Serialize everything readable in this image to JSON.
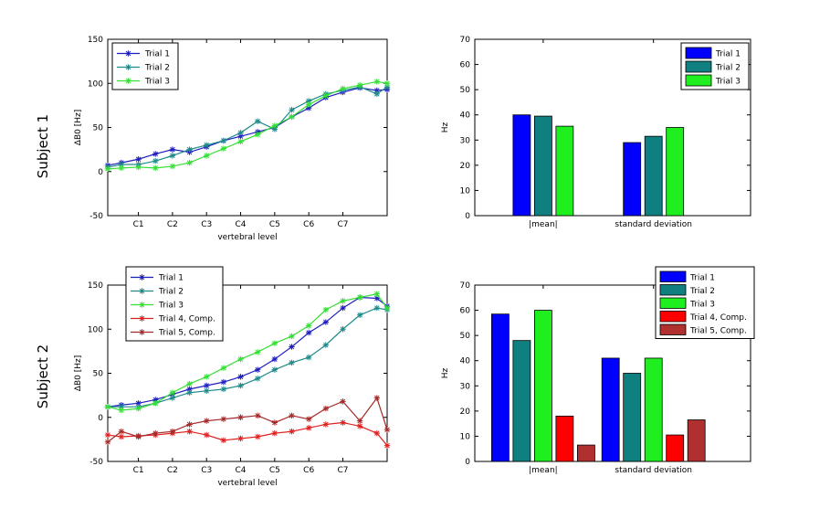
{
  "figure": {
    "subjects": [
      "Subject 1",
      "Subject 2"
    ]
  },
  "chart_data": [
    {
      "id": "s1_line",
      "type": "line",
      "subject": "Subject 1",
      "xlabel": "vertebral level",
      "ylabel": "ΔB0 [Hz]",
      "ylim": [
        -50,
        150
      ],
      "yticks": [
        -50,
        0,
        50,
        100,
        150
      ],
      "xtick_labels": [
        "C1",
        "C2",
        "C3",
        "C4",
        "C5",
        "C6",
        "C7"
      ],
      "xtick_positions": [
        1,
        2,
        3,
        4,
        5,
        6,
        7
      ],
      "xlim": [
        0.1,
        8.3
      ],
      "legend_position": "top-left",
      "series": [
        {
          "name": "Trial 1",
          "color": "#1f1fbf",
          "x": [
            0.1,
            0.5,
            1.0,
            1.5,
            2.0,
            2.5,
            3.0,
            3.5,
            4.0,
            4.5,
            5.0,
            5.5,
            6.0,
            6.5,
            7.0,
            7.5,
            8.0,
            8.3
          ],
          "y": [
            7,
            10,
            14,
            20,
            25,
            22,
            28,
            35,
            40,
            45,
            50,
            62,
            72,
            84,
            90,
            95,
            92,
            93
          ]
        },
        {
          "name": "Trial 2",
          "color": "#1f8a8a",
          "x": [
            0.1,
            0.5,
            1.0,
            1.5,
            2.0,
            2.5,
            3.0,
            3.5,
            4.0,
            4.5,
            5.0,
            5.5,
            6.0,
            6.5,
            7.0,
            7.5,
            8.0,
            8.3
          ],
          "y": [
            5,
            8,
            8,
            12,
            18,
            25,
            30,
            35,
            44,
            57,
            48,
            70,
            80,
            88,
            92,
            96,
            88,
            96
          ]
        },
        {
          "name": "Trial 3",
          "color": "#33e033",
          "x": [
            0.1,
            0.5,
            1.0,
            1.5,
            2.0,
            2.5,
            3.0,
            3.5,
            4.0,
            4.5,
            5.0,
            5.5,
            6.0,
            6.5,
            7.0,
            7.5,
            8.0,
            8.3
          ],
          "y": [
            3,
            4,
            5,
            4,
            6,
            10,
            18,
            26,
            34,
            42,
            52,
            62,
            76,
            86,
            94,
            98,
            102,
            100
          ]
        }
      ]
    },
    {
      "id": "s1_bar",
      "type": "bar",
      "subject": "Subject 1",
      "ylabel": "Hz",
      "ylim": [
        0,
        70
      ],
      "yticks": [
        0,
        10,
        20,
        30,
        40,
        50,
        60,
        70
      ],
      "categories": [
        "|mean|",
        "standard deviation"
      ],
      "legend_position": "top-right",
      "series": [
        {
          "name": "Trial 1",
          "color": "#0000ff",
          "values": [
            40,
            29
          ]
        },
        {
          "name": "Trial 2",
          "color": "#0f7f7f",
          "values": [
            39.5,
            31.5
          ]
        },
        {
          "name": "Trial 3",
          "color": "#1fef1f",
          "values": [
            35.5,
            35
          ]
        }
      ]
    },
    {
      "id": "s2_line",
      "type": "line",
      "subject": "Subject 2",
      "xlabel": "vertebral level",
      "ylabel": "ΔB0 [Hz]",
      "ylim": [
        -50,
        150
      ],
      "yticks": [
        -50,
        0,
        50,
        100,
        150
      ],
      "xtick_labels": [
        "C1",
        "C2",
        "C3",
        "C4",
        "C5",
        "C6",
        "C7"
      ],
      "xtick_positions": [
        1,
        2,
        3,
        4,
        5,
        6,
        7
      ],
      "xlim": [
        0.1,
        8.3
      ],
      "legend_position": "top-left",
      "series": [
        {
          "name": "Trial 1",
          "color": "#1f1fbf",
          "x": [
            0.1,
            0.5,
            1.0,
            1.5,
            2.0,
            2.5,
            3.0,
            3.5,
            4.0,
            4.5,
            5.0,
            5.5,
            6.0,
            6.5,
            7.0,
            7.5,
            8.0,
            8.3
          ],
          "y": [
            12,
            14,
            16,
            20,
            26,
            32,
            36,
            40,
            46,
            54,
            66,
            80,
            96,
            108,
            124,
            136,
            135,
            126
          ]
        },
        {
          "name": "Trial 2",
          "color": "#1f8a8a",
          "x": [
            0.1,
            0.5,
            1.0,
            1.5,
            2.0,
            2.5,
            3.0,
            3.5,
            4.0,
            4.5,
            5.0,
            5.5,
            6.0,
            6.5,
            7.0,
            7.5,
            8.0,
            8.3
          ],
          "y": [
            12,
            12,
            12,
            16,
            22,
            28,
            30,
            32,
            36,
            44,
            54,
            62,
            68,
            82,
            100,
            116,
            124,
            122
          ]
        },
        {
          "name": "Trial 3",
          "color": "#33e033",
          "x": [
            0.1,
            0.5,
            1.0,
            1.5,
            2.0,
            2.5,
            3.0,
            3.5,
            4.0,
            4.5,
            5.0,
            5.5,
            6.0,
            6.5,
            7.0,
            7.5,
            8.0,
            8.3
          ],
          "y": [
            12,
            8,
            10,
            16,
            28,
            38,
            46,
            56,
            66,
            74,
            84,
            92,
            104,
            122,
            132,
            136,
            140,
            124
          ]
        },
        {
          "name": "Trial 4, Comp.",
          "color": "#e01f1f",
          "x": [
            0.1,
            0.5,
            1.0,
            1.5,
            2.0,
            2.5,
            3.0,
            3.5,
            4.0,
            4.5,
            5.0,
            5.5,
            6.0,
            6.5,
            7.0,
            7.5,
            8.0,
            8.3
          ],
          "y": [
            -20,
            -22,
            -21,
            -20,
            -18,
            -16,
            -20,
            -26,
            -24,
            -22,
            -18,
            -16,
            -12,
            -8,
            -6,
            -10,
            -18,
            -32
          ]
        },
        {
          "name": "Trial 5, Comp.",
          "color": "#a52a2a",
          "x": [
            0.1,
            0.5,
            1.0,
            1.5,
            2.0,
            2.5,
            3.0,
            3.5,
            4.0,
            4.5,
            5.0,
            5.5,
            6.0,
            6.5,
            7.0,
            7.5,
            8.0,
            8.3
          ],
          "y": [
            -28,
            -16,
            -22,
            -18,
            -16,
            -8,
            -4,
            -2,
            0,
            2,
            -6,
            2,
            -2,
            10,
            18,
            -4,
            22,
            -14
          ]
        }
      ]
    },
    {
      "id": "s2_bar",
      "type": "bar",
      "subject": "Subject 2",
      "ylabel": "Hz",
      "ylim": [
        0,
        70
      ],
      "yticks": [
        0,
        10,
        20,
        30,
        40,
        50,
        60,
        70
      ],
      "categories": [
        "|mean|",
        "standard deviation"
      ],
      "legend_position": "top-right",
      "series": [
        {
          "name": "Trial 1",
          "color": "#0000ff",
          "values": [
            58.5,
            41
          ]
        },
        {
          "name": "Trial 2",
          "color": "#0f7f7f",
          "values": [
            48,
            35
          ]
        },
        {
          "name": "Trial 3",
          "color": "#1fef1f",
          "values": [
            60,
            41
          ]
        },
        {
          "name": "Trial 4, Comp.",
          "color": "#ff0000",
          "values": [
            18,
            10.5
          ]
        },
        {
          "name": "Trial 5, Comp.",
          "color": "#b03030",
          "values": [
            6.5,
            16.5
          ]
        }
      ]
    }
  ]
}
